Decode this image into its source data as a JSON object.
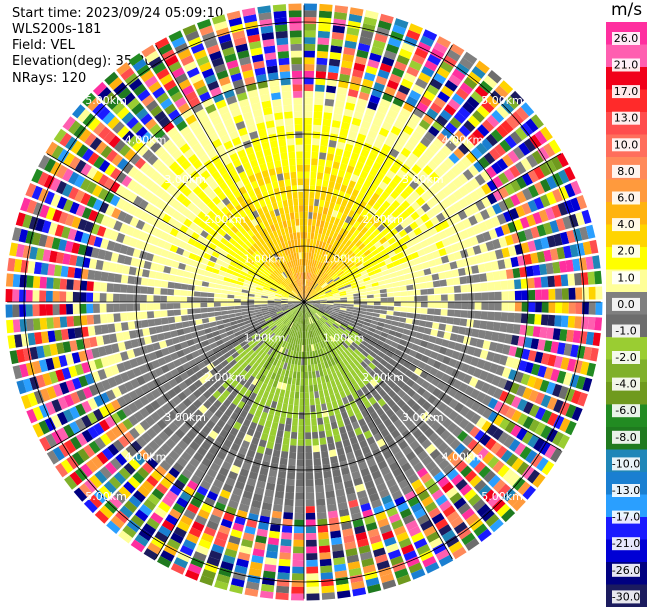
{
  "header": {
    "start_time": "Start time: 2023/09/24 05:09:10",
    "instrument": "WLS200s-181",
    "field": "Field: VEL",
    "elevation": "Elevation(deg): 35.30",
    "nrays": "NRays: 120"
  },
  "chart_data": {
    "type": "heatmap",
    "subtype": "ppi-polar",
    "field": "VEL",
    "units": "m/s",
    "nrays": 120,
    "range_ring_labels_km": [
      "1.00km",
      "2.00km",
      "3.00km",
      "4.00km",
      "5.00km"
    ],
    "range_rings_km": [
      1,
      2,
      3,
      4,
      5
    ],
    "spoke_angles_deg": [
      0,
      30,
      60,
      90,
      120,
      150,
      180,
      210,
      240,
      270,
      300,
      330
    ],
    "max_range_km": 5.3,
    "colorbar": {
      "title": "m/s",
      "tick_labels": [
        "26.0",
        "21.0",
        "17.0",
        "13.0",
        "10.0",
        "8.0",
        "6.0",
        "4.0",
        "2.0",
        "1.0",
        "0.0",
        "-1.0",
        "-2.0",
        "-4.0",
        "-6.0",
        "-8.0",
        "-10.0",
        "-13.0",
        "-17.0",
        "-21.0",
        "-26.0",
        "-30.0"
      ],
      "colors": [
        "#ff2f9f",
        "#ff5fb0",
        "#f1001a",
        "#ff2a2a",
        "#ff4d4d",
        "#ff6e5c",
        "#ff8a5a",
        "#ff9a3d",
        "#ffb30f",
        "#ffd400",
        "#ffff00",
        "#ffff99",
        "#7f7f7f",
        "#6d6d6d",
        "#9acd32",
        "#7fb02a",
        "#6f9a1e",
        "#228b22",
        "#1f7a1f",
        "#1f86b8",
        "#1a7fd1",
        "#2a9fff",
        "#1a1aff",
        "#0000d5",
        "#000080",
        "#1b1b5e"
      ]
    },
    "wind_pattern": {
      "approach_side": "north",
      "approach_sign": "positive",
      "recede_sign": "negative",
      "near_range_max_mps": 9,
      "noise_beyond_km": 3.6
    }
  }
}
